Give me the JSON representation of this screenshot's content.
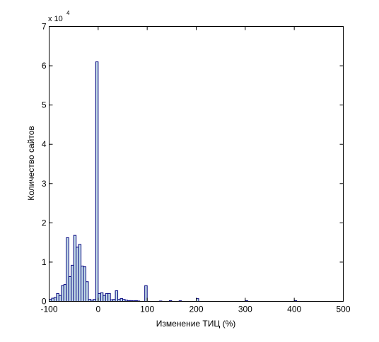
{
  "chart_data": {
    "type": "bar",
    "xlabel": "Изменение ТИЦ (%)",
    "ylabel": "Количество сайтов",
    "y_multiplier_label": "x 10",
    "y_multiplier_exponent": "4",
    "xlim": [
      -100,
      500
    ],
    "ylim": [
      0,
      7
    ],
    "x_ticks": [
      -100,
      0,
      100,
      200,
      300,
      400,
      500
    ],
    "y_ticks": [
      0,
      1,
      2,
      3,
      4,
      5,
      6,
      7
    ],
    "grid": false,
    "bar_width": 5,
    "bar_fill": "#c5dee8",
    "bar_stroke": "#00007f",
    "bin_centers": [
      -97.5,
      -92.5,
      -87.5,
      -82.5,
      -77.5,
      -72.5,
      -67.5,
      -62.5,
      -57.5,
      -52.5,
      -47.5,
      -42.5,
      -37.5,
      -32.5,
      -27.5,
      -22.5,
      -17.5,
      -12.5,
      -7.5,
      -2.5,
      2.5,
      7.5,
      12.5,
      17.5,
      22.5,
      27.5,
      32.5,
      37.5,
      42.5,
      47.5,
      52.5,
      57.5,
      62.5,
      67.5,
      72.5,
      77.5,
      82.5,
      97.5,
      127.5,
      147.5,
      167.5,
      202.5,
      302.5,
      402.5
    ],
    "values": [
      0.05,
      0.08,
      0.1,
      0.2,
      0.15,
      0.4,
      0.43,
      1.62,
      0.63,
      0.92,
      1.68,
      1.38,
      1.45,
      0.9,
      0.88,
      0.5,
      0.05,
      0.03,
      0.05,
      6.1,
      0.2,
      0.22,
      0.15,
      0.2,
      0.2,
      0.04,
      0.05,
      0.27,
      0.05,
      0.07,
      0.05,
      0.03,
      0.02,
      0.02,
      0.015,
      0.02,
      0.01,
      0.4,
      0.01,
      0.02,
      0.015,
      0.07,
      0.02,
      0.02
    ]
  }
}
